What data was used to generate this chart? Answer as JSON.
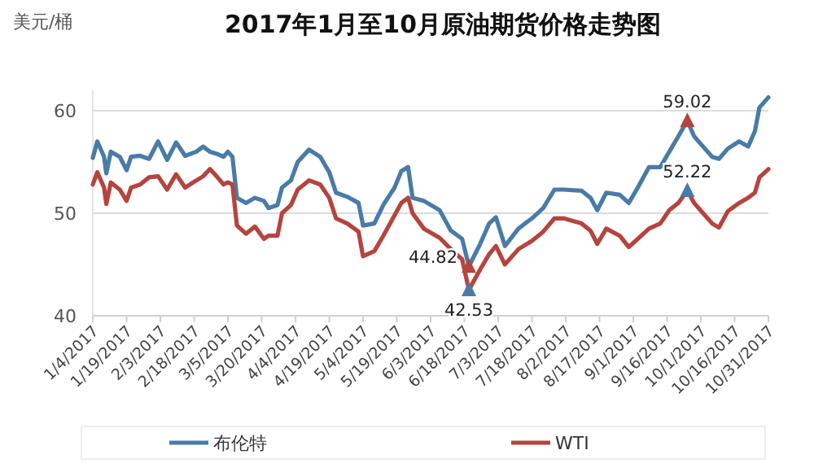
{
  "chart_data": {
    "type": "line",
    "title": "2017年1月至10月原油期货价格走势图",
    "ylabel": "美元/桶",
    "x": [
      "2017-01-04",
      "2017-01-06",
      "2017-01-09",
      "2017-01-10",
      "2017-01-12",
      "2017-01-16",
      "2017-01-19",
      "2017-01-21",
      "2017-01-25",
      "2017-01-29",
      "2017-02-02",
      "2017-02-06",
      "2017-02-10",
      "2017-02-14",
      "2017-02-19",
      "2017-02-22",
      "2017-02-25",
      "2017-02-28",
      "2017-03-03",
      "2017-03-05",
      "2017-03-07",
      "2017-03-09",
      "2017-03-13",
      "2017-03-17",
      "2017-03-21",
      "2017-03-23",
      "2017-03-27",
      "2017-03-29",
      "2017-04-02",
      "2017-04-05",
      "2017-04-10",
      "2017-04-15",
      "2017-04-19",
      "2017-04-22",
      "2017-04-27",
      "2017-05-02",
      "2017-05-04",
      "2017-05-09",
      "2017-05-13",
      "2017-05-18",
      "2017-05-21",
      "2017-05-24",
      "2017-05-26",
      "2017-05-31",
      "2017-06-07",
      "2017-06-12",
      "2017-06-17",
      "2017-06-20",
      "2017-06-25",
      "2017-06-29",
      "2017-07-02",
      "2017-07-06",
      "2017-07-12",
      "2017-07-18",
      "2017-07-23",
      "2017-07-28",
      "2017-08-01",
      "2017-08-09",
      "2017-08-13",
      "2017-08-16",
      "2017-08-20",
      "2017-08-26",
      "2017-08-30",
      "2017-09-03",
      "2017-09-08",
      "2017-09-13",
      "2017-09-17",
      "2017-09-21",
      "2017-09-25",
      "2017-09-28",
      "2017-10-02",
      "2017-10-06",
      "2017-10-09",
      "2017-10-13",
      "2017-10-18",
      "2017-10-22",
      "2017-10-25",
      "2017-10-27",
      "2017-10-31"
    ],
    "series": [
      {
        "name": "布伦特",
        "color": "#4a7ba7",
        "values": [
          55.4,
          57.0,
          55.5,
          53.9,
          56.0,
          55.5,
          54.2,
          55.5,
          55.6,
          55.3,
          57.0,
          55.2,
          56.9,
          55.6,
          56.0,
          56.5,
          56.0,
          55.8,
          55.5,
          56.0,
          55.5,
          51.5,
          51.0,
          51.5,
          51.2,
          50.5,
          50.8,
          52.5,
          53.2,
          55.0,
          56.2,
          55.5,
          54.0,
          52.0,
          51.6,
          51.0,
          48.8,
          49.0,
          50.8,
          52.5,
          54.1,
          54.5,
          51.5,
          51.2,
          50.3,
          48.3,
          47.5,
          44.82,
          47.0,
          49.0,
          49.6,
          46.8,
          48.5,
          49.5,
          50.5,
          52.3,
          52.3,
          52.2,
          51.5,
          50.3,
          52.0,
          51.8,
          51.0,
          52.5,
          54.5,
          54.5,
          56.0,
          57.5,
          59.02,
          57.5,
          56.5,
          55.5,
          55.3,
          56.3,
          57.0,
          56.5,
          58.0,
          60.3,
          61.3
        ]
      },
      {
        "name": "WTI",
        "color": "#b5443f",
        "values": [
          52.8,
          54.0,
          52.5,
          50.9,
          53.0,
          52.3,
          51.2,
          52.5,
          52.8,
          53.5,
          53.6,
          52.3,
          53.8,
          52.5,
          53.2,
          53.6,
          54.3,
          53.6,
          52.8,
          53.0,
          52.8,
          48.8,
          48.0,
          48.7,
          47.5,
          47.8,
          47.8,
          50.0,
          50.8,
          52.3,
          53.2,
          52.8,
          51.5,
          49.5,
          49.0,
          48.2,
          45.8,
          46.3,
          47.8,
          49.8,
          51.0,
          51.5,
          50.0,
          48.5,
          47.6,
          46.5,
          45.5,
          42.53,
          44.5,
          46.0,
          46.8,
          45.0,
          46.5,
          47.3,
          48.2,
          49.5,
          49.5,
          49.0,
          48.3,
          47.0,
          48.5,
          47.8,
          46.7,
          47.5,
          48.5,
          49.0,
          50.3,
          51.0,
          52.22,
          51.0,
          50.0,
          49.0,
          48.6,
          50.2,
          51.0,
          51.5,
          52.0,
          53.5,
          54.3
        ]
      }
    ],
    "annotations": [
      {
        "text": "59.02",
        "x": "2017-09-25",
        "y": 59.02
      },
      {
        "text": "52.22",
        "x": "2017-09-25",
        "y": 52.22
      },
      {
        "text": "44.82",
        "x": "2017-06-20",
        "y": 44.82
      },
      {
        "text": "42.53",
        "x": "2017-06-20",
        "y": 42.53
      }
    ],
    "xlim": [
      "2017-01-04",
      "2017-10-31"
    ],
    "xticks": [
      {
        "value": "2017-01-04",
        "label": "1/4/2017"
      },
      {
        "value": "2017-01-19",
        "label": "1/19/2017"
      },
      {
        "value": "2017-02-03",
        "label": "2/3/2017"
      },
      {
        "value": "2017-02-18",
        "label": "2/18/2017"
      },
      {
        "value": "2017-03-05",
        "label": "3/5/2017"
      },
      {
        "value": "2017-03-20",
        "label": "3/20/2017"
      },
      {
        "value": "2017-04-04",
        "label": "4/4/2017"
      },
      {
        "value": "2017-04-19",
        "label": "4/19/2017"
      },
      {
        "value": "2017-05-04",
        "label": "5/4/2017"
      },
      {
        "value": "2017-05-19",
        "label": "5/19/2017"
      },
      {
        "value": "2017-06-03",
        "label": "6/3/2017"
      },
      {
        "value": "2017-06-18",
        "label": "6/18/2017"
      },
      {
        "value": "2017-07-03",
        "label": "7/3/2017"
      },
      {
        "value": "2017-07-18",
        "label": "7/18/2017"
      },
      {
        "value": "2017-08-02",
        "label": "8/2/2017"
      },
      {
        "value": "2017-08-17",
        "label": "8/17/2017"
      },
      {
        "value": "2017-09-01",
        "label": "9/1/2017"
      },
      {
        "value": "2017-09-16",
        "label": "9/16/2017"
      },
      {
        "value": "2017-10-01",
        "label": "10/1/2017"
      },
      {
        "value": "2017-10-16",
        "label": "10/16/2017"
      },
      {
        "value": "2017-10-31",
        "label": "10/31/2017"
      }
    ],
    "ylim": [
      40,
      62
    ],
    "yticks": [
      40,
      50,
      60
    ],
    "grid": "y",
    "legend": "bottom",
    "marker": "none",
    "line_style": "solid"
  }
}
